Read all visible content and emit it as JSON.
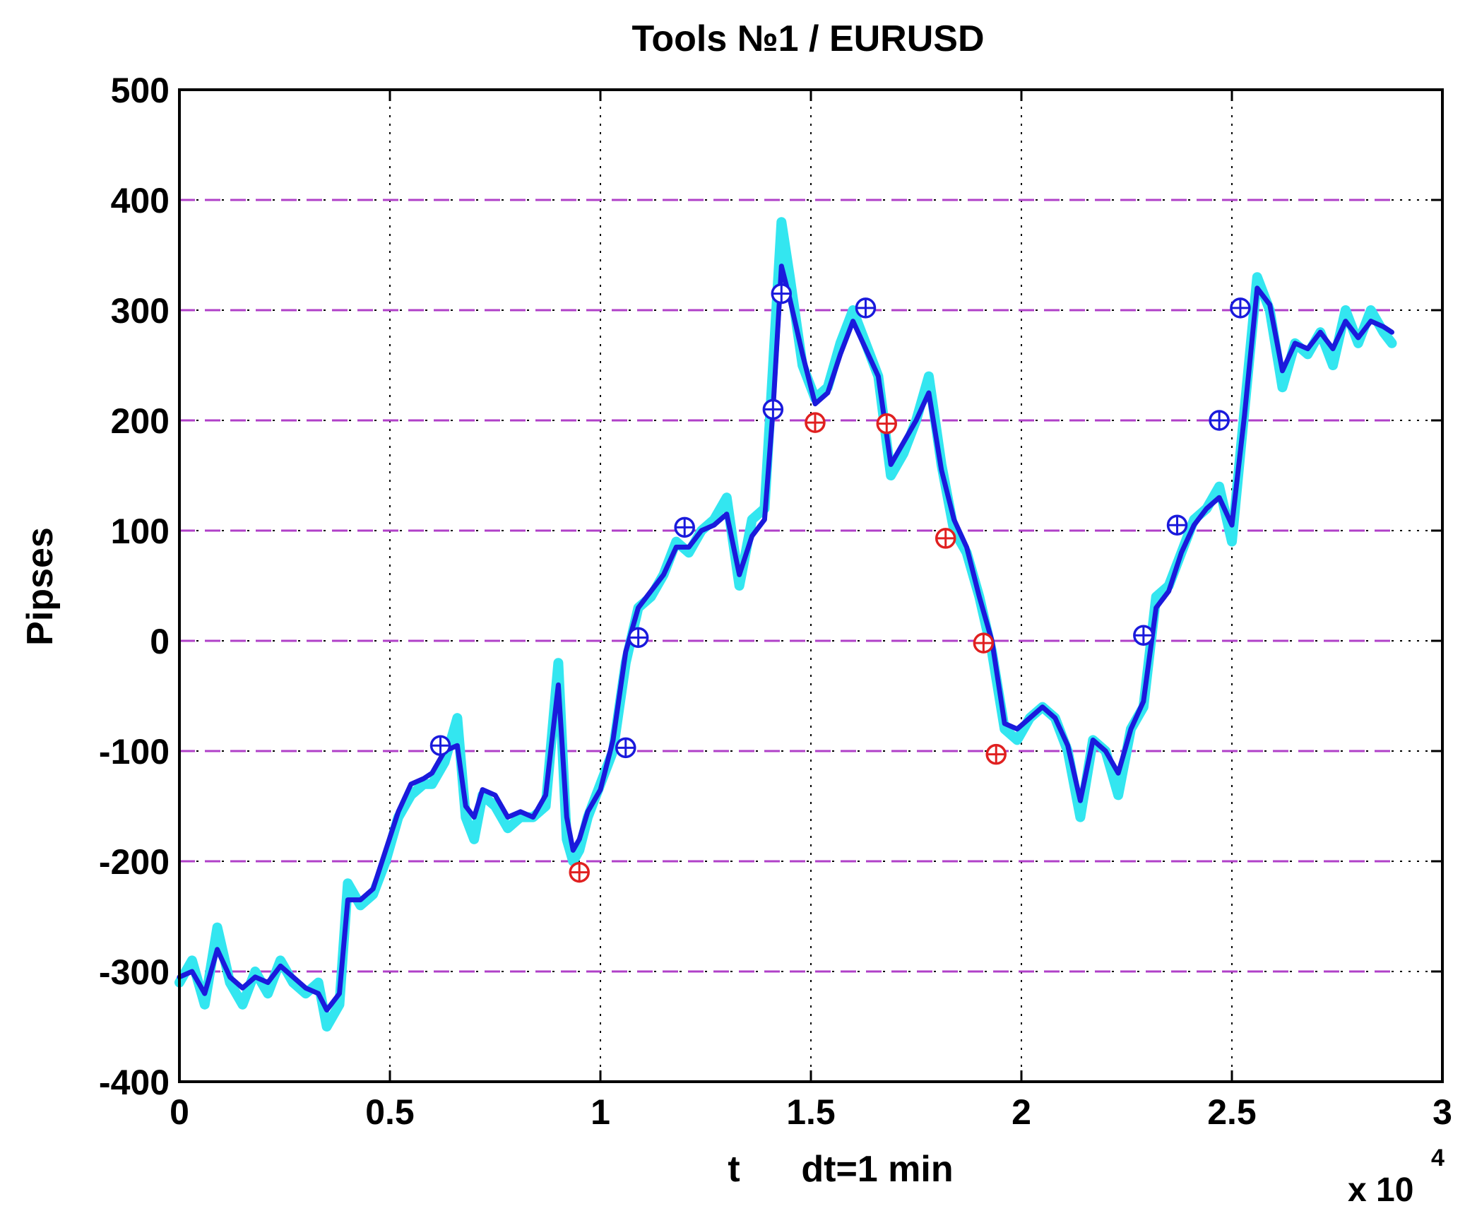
{
  "chart_data": {
    "type": "line",
    "title": "Tools  №1 / EURUSD",
    "xlabel": "t      dt=1 min",
    "ylabel": "Pipses",
    "x_multiplier": "x 10",
    "x_multiplier_exp": "4",
    "xlim": [
      0,
      30000
    ],
    "ylim": [
      -400,
      500
    ],
    "xticks": [
      0,
      5000,
      10000,
      15000,
      20000,
      25000,
      30000
    ],
    "xtick_labels": [
      "0",
      "0.5",
      "1",
      "1.5",
      "2",
      "2.5",
      "3"
    ],
    "yticks": [
      -400,
      -300,
      -200,
      -100,
      0,
      100,
      200,
      300,
      400,
      500
    ],
    "ytick_labels": [
      "-400",
      "-300",
      "-200",
      "-100",
      "0",
      "100",
      "200",
      "300",
      "400",
      "500"
    ],
    "grid": true,
    "reference_levels": [
      -300,
      -200,
      -100,
      0,
      100,
      200,
      300,
      400
    ],
    "colors": {
      "raw": "#33e6f0",
      "smooth": "#1a1adc",
      "levels": "#b040c8",
      "grid": "#000000",
      "buy_marker": "#1a1adc",
      "sell_marker": "#e02020"
    },
    "series": [
      {
        "role": "raw",
        "x": [
          0,
          300,
          600,
          900,
          1200,
          1500,
          1800,
          2100,
          2400,
          2700,
          3000,
          3300,
          3500,
          3800,
          4000,
          4300,
          4600,
          4900,
          5200,
          5500,
          5800,
          6000,
          6300,
          6600,
          6800,
          7000,
          7200,
          7500,
          7800,
          8100,
          8400,
          8700,
          9000,
          9200,
          9350,
          9500,
          9700,
          10000,
          10300,
          10600,
          10900,
          11200,
          11500,
          11800,
          12100,
          12400,
          12700,
          13000,
          13300,
          13600,
          13900,
          14100,
          14300,
          14500,
          14800,
          15100,
          15400,
          15700,
          16000,
          16300,
          16600,
          16900,
          17200,
          17500,
          17800,
          18100,
          18400,
          18700,
          19000,
          19300,
          19600,
          19900,
          20200,
          20500,
          20800,
          21100,
          21400,
          21700,
          22000,
          22300,
          22600,
          22900,
          23200,
          23500,
          23800,
          24100,
          24400,
          24700,
          25000,
          25300,
          25600,
          25900,
          26200,
          26500,
          26800,
          27100,
          27400,
          27700,
          28000,
          28300,
          28600,
          28800
        ],
        "y": [
          -310,
          -290,
          -330,
          -260,
          -310,
          -330,
          -300,
          -320,
          -290,
          -310,
          -320,
          -310,
          -350,
          -330,
          -220,
          -240,
          -230,
          -200,
          -160,
          -140,
          -130,
          -130,
          -110,
          -70,
          -160,
          -180,
          -140,
          -150,
          -170,
          -160,
          -160,
          -150,
          -20,
          -180,
          -200,
          -190,
          -160,
          -130,
          -100,
          -20,
          30,
          40,
          60,
          90,
          80,
          100,
          110,
          130,
          50,
          110,
          120,
          250,
          380,
          330,
          250,
          220,
          230,
          270,
          300,
          270,
          240,
          150,
          170,
          200,
          240,
          160,
          100,
          80,
          40,
          -10,
          -80,
          -90,
          -70,
          -60,
          -70,
          -100,
          -160,
          -90,
          -100,
          -140,
          -80,
          -60,
          40,
          50,
          80,
          110,
          120,
          140,
          90,
          210,
          330,
          300,
          230,
          270,
          260,
          280,
          250,
          300,
          270,
          300,
          280,
          270
        ]
      },
      {
        "role": "smooth",
        "x": [
          0,
          300,
          600,
          900,
          1200,
          1500,
          1800,
          2100,
          2400,
          2700,
          3000,
          3300,
          3500,
          3800,
          4000,
          4300,
          4600,
          4900,
          5200,
          5500,
          5800,
          6000,
          6300,
          6600,
          6800,
          7000,
          7200,
          7500,
          7800,
          8100,
          8400,
          8700,
          9000,
          9200,
          9350,
          9500,
          9700,
          10000,
          10300,
          10600,
          10900,
          11200,
          11500,
          11800,
          12100,
          12400,
          12700,
          13000,
          13300,
          13600,
          13900,
          14100,
          14300,
          14500,
          14800,
          15100,
          15400,
          15700,
          16000,
          16300,
          16600,
          16900,
          17200,
          17500,
          17800,
          18100,
          18400,
          18700,
          19000,
          19300,
          19600,
          19900,
          20200,
          20500,
          20800,
          21100,
          21400,
          21700,
          22000,
          22300,
          22600,
          22900,
          23200,
          23500,
          23800,
          24100,
          24400,
          24700,
          25000,
          25300,
          25600,
          25900,
          26200,
          26500,
          26800,
          27100,
          27400,
          27700,
          28000,
          28300,
          28600,
          28800
        ],
        "y": [
          -305,
          -300,
          -320,
          -280,
          -305,
          -315,
          -305,
          -310,
          -295,
          -305,
          -315,
          -320,
          -335,
          -320,
          -235,
          -235,
          -225,
          -190,
          -155,
          -130,
          -125,
          -120,
          -100,
          -95,
          -150,
          -160,
          -135,
          -140,
          -160,
          -155,
          -160,
          -140,
          -40,
          -160,
          -190,
          -180,
          -155,
          -135,
          -90,
          -10,
          30,
          45,
          60,
          85,
          85,
          100,
          105,
          115,
          60,
          95,
          110,
          210,
          340,
          310,
          260,
          215,
          225,
          260,
          290,
          265,
          240,
          160,
          180,
          200,
          225,
          155,
          110,
          85,
          40,
          0,
          -75,
          -80,
          -70,
          -60,
          -70,
          -95,
          -145,
          -90,
          -100,
          -120,
          -80,
          -55,
          30,
          45,
          80,
          105,
          120,
          130,
          105,
          205,
          320,
          305,
          245,
          270,
          265,
          280,
          265,
          290,
          275,
          290,
          285,
          280
        ]
      }
    ],
    "markers": {
      "buy": [
        {
          "x": 6200,
          "y": -95
        },
        {
          "x": 10600,
          "y": -97
        },
        {
          "x": 10900,
          "y": 3
        },
        {
          "x": 12000,
          "y": 103
        },
        {
          "x": 14100,
          "y": 210
        },
        {
          "x": 14300,
          "y": 315
        },
        {
          "x": 16300,
          "y": 302
        },
        {
          "x": 22900,
          "y": 5
        },
        {
          "x": 23700,
          "y": 105
        },
        {
          "x": 24700,
          "y": 200
        },
        {
          "x": 25200,
          "y": 302
        }
      ],
      "sell": [
        {
          "x": 9500,
          "y": -210
        },
        {
          "x": 15100,
          "y": 198
        },
        {
          "x": 16800,
          "y": 197
        },
        {
          "x": 18200,
          "y": 93
        },
        {
          "x": 19100,
          "y": -2
        },
        {
          "x": 19400,
          "y": -103
        }
      ]
    }
  }
}
